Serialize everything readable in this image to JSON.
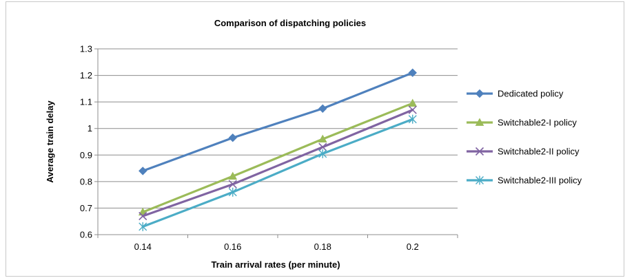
{
  "chart_data": {
    "type": "line",
    "title": "Comparison of dispatching policies",
    "xlabel": "Train arrival rates (per minute)",
    "ylabel": "Average train delay",
    "categories": [
      "0.14",
      "0.16",
      "0.18",
      "0.2"
    ],
    "ylim": [
      0.6,
      1.3
    ],
    "yticks": [
      "0.6",
      "0.7",
      "0.8",
      "0.9",
      "1",
      "1.1",
      "1.2",
      "1.3"
    ],
    "grid": "horizontal",
    "legend_position": "right",
    "series": [
      {
        "name": "Dedicated policy",
        "values": [
          0.84,
          0.965,
          1.075,
          1.21
        ],
        "color": "#4F81BD",
        "marker": "diamond"
      },
      {
        "name": "Switchable2-I policy",
        "values": [
          0.685,
          0.82,
          0.96,
          1.095
        ],
        "color": "#9BBB59",
        "marker": "triangle"
      },
      {
        "name": "Switchable2-II policy",
        "values": [
          0.67,
          0.79,
          0.93,
          1.07
        ],
        "color": "#8064A2",
        "marker": "x"
      },
      {
        "name": "Switchable2-III policy",
        "values": [
          0.63,
          0.76,
          0.905,
          1.035
        ],
        "color": "#4BACC6",
        "marker": "asterisk"
      }
    ]
  }
}
